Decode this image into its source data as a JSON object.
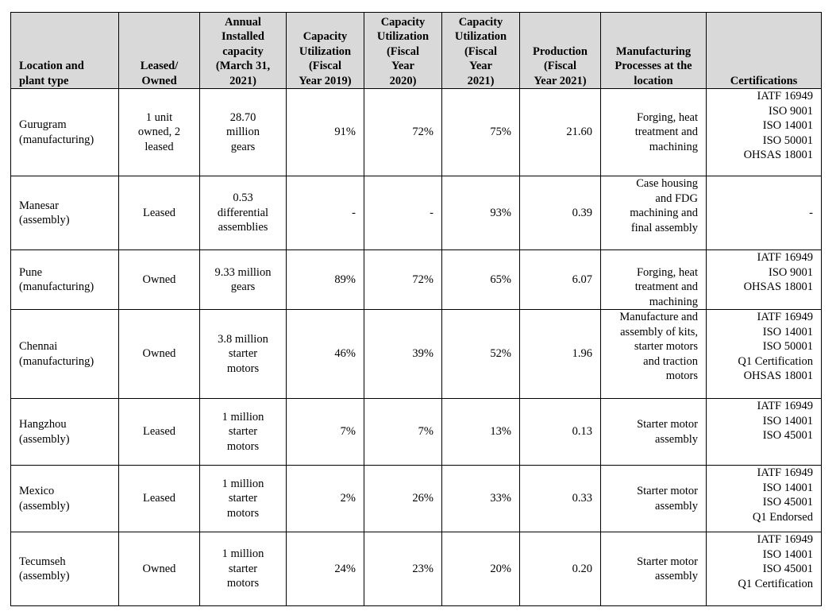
{
  "table": {
    "headers": [
      "Location and\nplant type",
      "Leased/\nOwned",
      "Annual\nInstalled\ncapacity\n(March 31,\n2021)",
      "Capacity\nUtilization\n(Fiscal\nYear 2019)",
      "Capacity\nUtilization\n(Fiscal\nYear\n2020)",
      "Capacity\nUtilization\n(Fiscal\nYear\n2021)",
      "Production\n(Fiscal\nYear 2021)",
      "Manufacturing\nProcesses at the\nlocation",
      "Certifications"
    ],
    "rows": [
      {
        "location": "Gurugram\n(manufacturing)",
        "leased_owned": "1 unit\nowned, 2\nleased",
        "capacity": "28.70\nmillion\ngears",
        "util_2019": "91%",
        "util_2020": "72%",
        "util_2021": "75%",
        "production": "21.60",
        "processes": "Forging, heat\ntreatment and\nmachining",
        "certifications": "IATF 16949\nISO 9001\nISO 14001\nISO 50001\nOHSAS 18001"
      },
      {
        "location": "Manesar\n(assembly)",
        "leased_owned": "Leased",
        "capacity": "0.53\ndifferential\nassemblies",
        "util_2019": "-",
        "util_2020": "-",
        "util_2021": "93%",
        "production": "0.39",
        "processes": "Case housing\nand FDG\nmachining and\nfinal assembly",
        "certifications": "-"
      },
      {
        "location": "Pune\n(manufacturing)",
        "leased_owned": "Owned",
        "capacity": "9.33 million\ngears",
        "util_2019": "89%",
        "util_2020": "72%",
        "util_2021": "65%",
        "production": "6.07",
        "processes": "Forging, heat\ntreatment and\nmachining",
        "certifications": "IATF 16949\nISO 9001\nOHSAS 18001"
      },
      {
        "location": "Chennai\n(manufacturing)",
        "leased_owned": "Owned",
        "capacity": "3.8 million\nstarter\nmotors",
        "util_2019": "46%",
        "util_2020": "39%",
        "util_2021": "52%",
        "production": "1.96",
        "processes": "Manufacture and\nassembly of kits,\nstarter motors\nand traction\nmotors",
        "certifications": "IATF 16949\nISO 14001\nISO 50001\nQ1 Certification\nOHSAS 18001"
      },
      {
        "location": "Hangzhou\n(assembly)",
        "leased_owned": "Leased",
        "capacity": "1 million\nstarter\nmotors",
        "util_2019": "7%",
        "util_2020": "7%",
        "util_2021": "13%",
        "production": "0.13",
        "processes": "Starter motor\nassembly",
        "certifications": "IATF 16949\nISO 14001\nISO 45001"
      },
      {
        "location": "Mexico\n(assembly)",
        "leased_owned": "Leased",
        "capacity": "1 million\nstarter\nmotors",
        "util_2019": "2%",
        "util_2020": "26%",
        "util_2021": "33%",
        "production": "0.33",
        "processes": "Starter motor\nassembly",
        "certifications": "IATF 16949\nISO 14001\nISO 45001\nQ1 Endorsed"
      },
      {
        "location": "Tecumseh\n(assembly)",
        "leased_owned": "Owned",
        "capacity": "1 million\nstarter\nmotors",
        "util_2019": "24%",
        "util_2020": "23%",
        "util_2021": "20%",
        "production": "0.20",
        "processes": "Starter motor\nassembly",
        "certifications": "IATF 16949\nISO 14001\nISO 45001\nQ1 Certification"
      }
    ]
  }
}
